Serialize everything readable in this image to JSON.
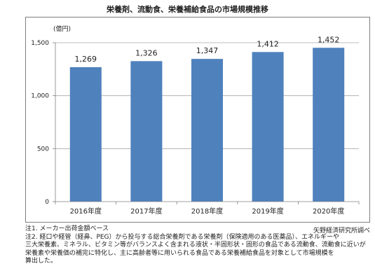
{
  "title": "栄養剤、流動食、栄養補給食品の市場規模推移",
  "unit_label": "(億円)",
  "source": "矢野経済研究所調べ",
  "notes": [
    "注1. メーカー出荷金額ベース",
    "注2. 経口や経管（経鼻、PEG）から投与する総合栄養剤である栄養剤（保険適用のある医薬品）、エネルギーや",
    "三大栄養素、ミネラル、ビタミン等がバランスよく含まれる液状・半固形状・固形の食品である流動食、流動食に近いが",
    "栄養素や栄養価の補完に特化し、主に高齢者等に用いられる食品である栄養補給食品を対象として市場規模を",
    "算出した。"
  ],
  "chart_data": {
    "type": "bar",
    "title": "栄養剤、流動食、栄養補給食品の市場規模推移",
    "ylabel": "(億円)",
    "xlabel": "",
    "categories": [
      "2016年度",
      "2017年度",
      "2018年度",
      "2019年度",
      "2020年度"
    ],
    "values": [
      1269,
      1326,
      1347,
      1412,
      1452
    ],
    "value_labels": [
      "1,269",
      "1,326",
      "1,347",
      "1,412",
      "1,452"
    ],
    "ylim": [
      0,
      1500
    ],
    "yticks": [
      0,
      500,
      1000,
      1500
    ],
    "ytick_labels": [
      "0",
      "500",
      "1,000",
      "1,500"
    ],
    "grid": true,
    "legend": "none",
    "bar_color": "#4f81bd",
    "grid_color": "#a6a6a6"
  }
}
